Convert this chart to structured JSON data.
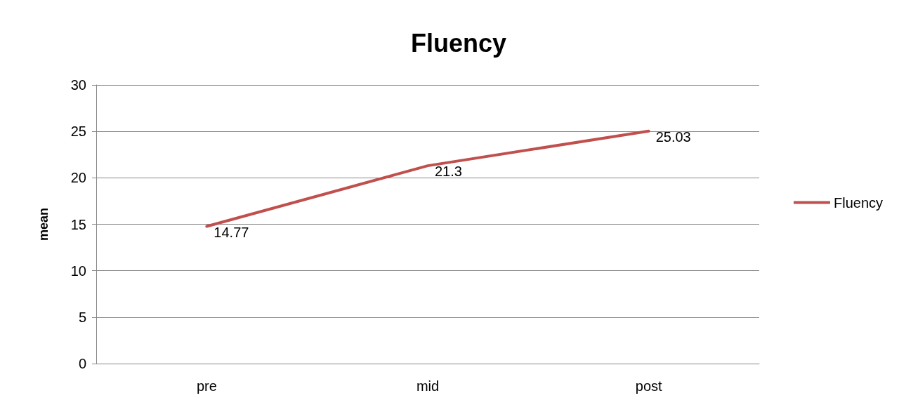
{
  "chart_data": {
    "type": "line",
    "title": "Fluency",
    "ylabel": "mean",
    "categories": [
      "pre",
      "mid",
      "post"
    ],
    "series": [
      {
        "name": "Fluency",
        "color": "#c0504d",
        "values": [
          14.77,
          21.3,
          25.03
        ]
      }
    ],
    "ylim": [
      0,
      30
    ],
    "yticks": [
      0,
      5,
      10,
      15,
      20,
      25,
      30
    ],
    "grid": "y",
    "legend": "right",
    "marker": "none",
    "line_style": "solid",
    "data_labels": true
  }
}
